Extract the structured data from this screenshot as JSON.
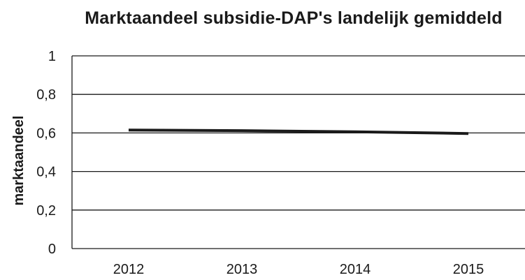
{
  "chart_data": {
    "type": "line",
    "title": "Marktaandeel subsidie-DAP's landelijk gemiddeld",
    "xlabel": "",
    "ylabel": "marktaandeel",
    "categories": [
      "2012",
      "2013",
      "2014",
      "2015"
    ],
    "series": [
      {
        "values": [
          0.615,
          0.612,
          0.606,
          0.597
        ],
        "color": "#1a1a1a"
      }
    ],
    "ylim": [
      0,
      1
    ],
    "yticks": [
      0,
      0.2,
      0.4,
      0.6,
      0.8,
      1
    ],
    "ytick_labels": [
      "0",
      "0,2",
      "0,4",
      "0,6",
      "0,8",
      "1"
    ],
    "grid": true,
    "legend": "none"
  }
}
